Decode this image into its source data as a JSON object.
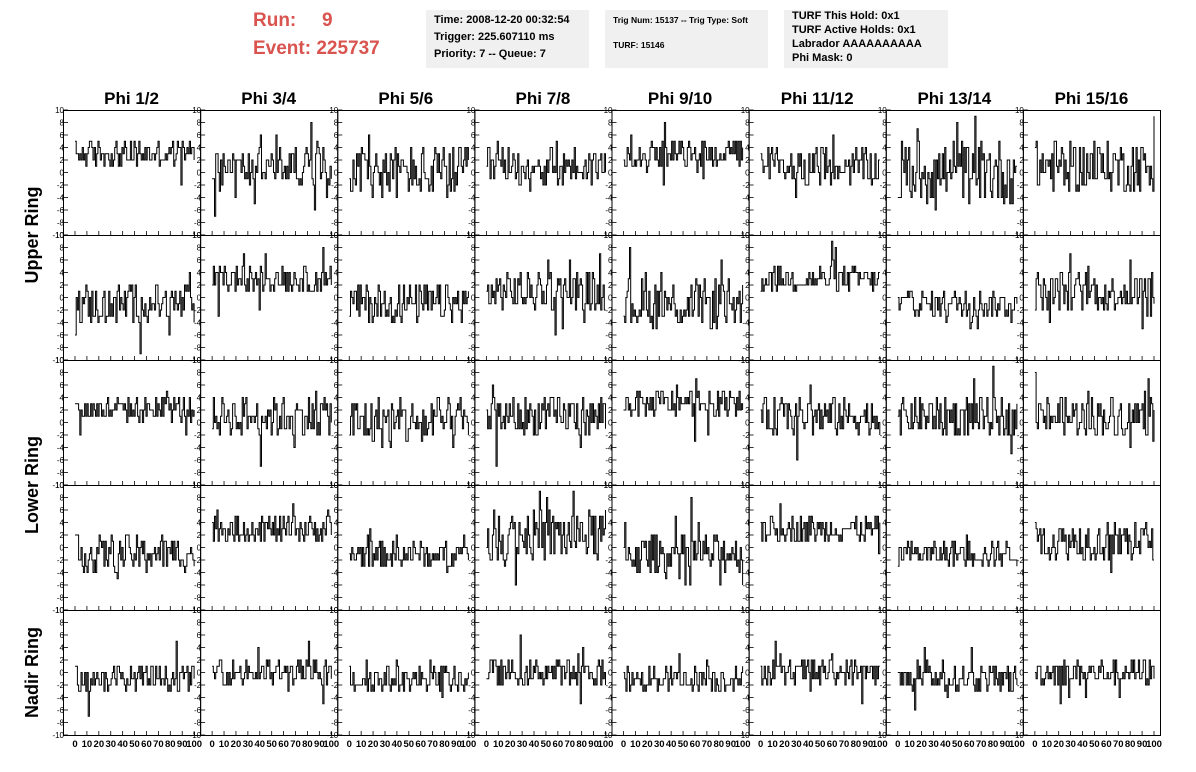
{
  "header": {
    "run_label": "Run:",
    "run_value": "9",
    "event_line": "Event: 225737",
    "time_line": "Time: 2008-12-20 00:32:54",
    "trigger_line": "Trigger: 225.607110 ms",
    "priority_line": "Priority: 7 -- Queue: 7",
    "trig_line": "Trig Num: 15137 -- Trig Type: Soft",
    "turf_line": "TURF: 15146",
    "turf_this_hold": "TURF This Hold: 0x1",
    "turf_active_holds": "TURF Active Holds: 0x1",
    "labrador": "Labrador AAAAAAAAAA",
    "phi_mask": "Phi Mask: 0"
  },
  "chart_data": {
    "type": "line",
    "layout": "grid-5x8",
    "column_titles": [
      "Phi 1/2",
      "Phi 3/4",
      "Phi 5/6",
      "Phi 7/8",
      "Phi 9/10",
      "Phi 11/12",
      "Phi 13/14",
      "Phi 15/16"
    ],
    "ring_labels": [
      "Upper Ring",
      "Lower Ring",
      "Nadir Ring"
    ],
    "ring_rows": [
      [
        0,
        1
      ],
      [
        2,
        3
      ],
      [
        4
      ]
    ],
    "xlim": [
      0,
      100
    ],
    "ylim": [
      -10,
      10
    ],
    "x_ticks": [
      0,
      10,
      20,
      30,
      40,
      50,
      60,
      70,
      80,
      90,
      100
    ],
    "x_tick_labels": [
      "0",
      "10",
      "20",
      "30",
      "40",
      "50",
      "60",
      "70",
      "80",
      "90",
      "100"
    ],
    "y_ticks": [
      -10,
      -8,
      -6,
      -4,
      -2,
      0,
      2,
      4,
      6,
      8,
      10
    ],
    "y_tick_labels": [
      "-10",
      "-8",
      "-6",
      "-4",
      "-2",
      "0",
      "2",
      "4",
      "6",
      "8",
      "10"
    ],
    "samples_per_trace": 100,
    "panel_levels": [
      [
        3,
        1,
        0,
        1,
        3,
        1,
        0,
        1
      ],
      [
        -1,
        3,
        -1,
        1,
        -1,
        3,
        -1,
        1
      ],
      [
        2,
        1,
        0,
        1,
        3,
        1,
        1,
        1
      ],
      [
        -1,
        3,
        -1,
        2,
        -1,
        3,
        -1,
        1
      ],
      [
        -1,
        0,
        -1,
        0,
        -1,
        0,
        -1,
        0
      ]
    ],
    "panel_spread": [
      [
        2,
        3,
        4,
        3,
        2,
        3,
        5,
        4
      ],
      [
        3,
        2,
        3,
        3,
        4,
        2,
        2,
        3
      ],
      [
        2,
        3,
        4,
        3,
        2,
        3,
        3,
        3
      ],
      [
        3,
        2,
        2,
        4,
        3,
        2,
        2,
        3
      ],
      [
        2,
        2,
        2,
        2,
        2,
        2,
        2,
        2
      ]
    ]
  }
}
